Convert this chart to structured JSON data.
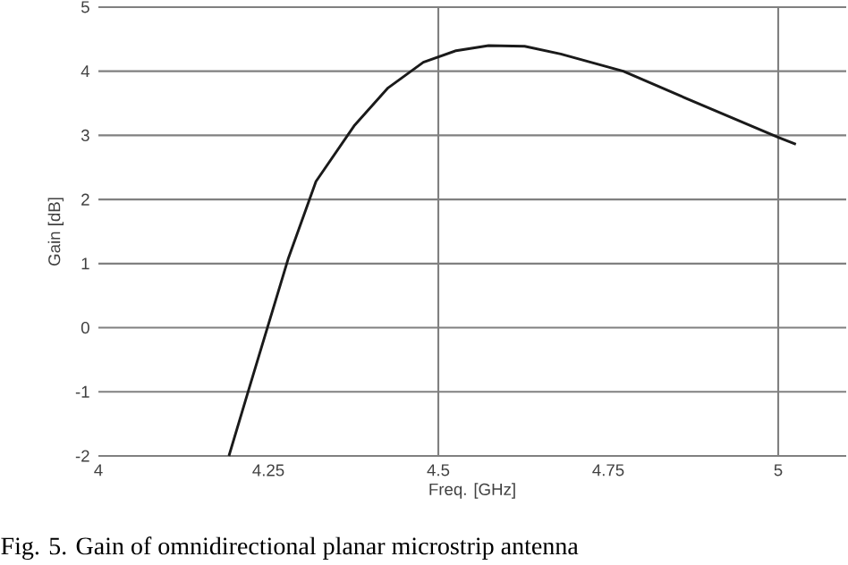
{
  "chart_data": {
    "type": "line",
    "xlabel": "Freq. [GHz]",
    "ylabel": "Gain [dB]",
    "x": [
      4.192,
      4.221,
      4.279,
      4.32,
      4.377,
      4.426,
      4.478,
      4.526,
      4.574,
      4.627,
      4.68,
      4.772,
      4.864,
      5.0,
      5.026
    ],
    "series": [
      {
        "color": "#1a1a1a",
        "values": [
          -2.0,
          -0.97,
          1.07,
          2.28,
          3.16,
          3.74,
          4.14,
          4.32,
          4.4,
          4.39,
          4.27,
          4.0,
          3.58,
          2.97,
          2.86
        ]
      }
    ],
    "xlim": [
      4,
      5.1
    ],
    "ylim": [
      -2,
      5
    ],
    "xticks": [
      4,
      4.25,
      4.5,
      4.75,
      5
    ],
    "yticks": [
      -2,
      -1,
      0,
      1,
      2,
      3,
      4,
      5
    ],
    "grid": "y",
    "marker": "none",
    "line_style": "solid",
    "ref_lines": [
      {
        "axis": "x",
        "value": 4.5,
        "label": null,
        "color": "#808080"
      },
      {
        "axis": "x",
        "value": 5,
        "label": null,
        "color": "#808080"
      }
    ],
    "annotations": [
      "Fig. 5. Gain of omnidirectional planar microstrip antenna"
    ]
  }
}
